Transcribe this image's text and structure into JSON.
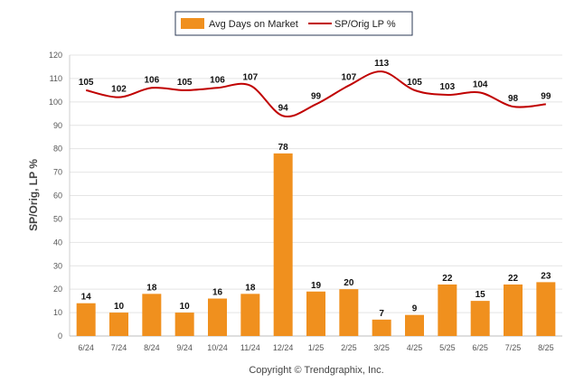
{
  "chart_data": {
    "type": "bar",
    "categories": [
      "6/24",
      "7/24",
      "8/24",
      "9/24",
      "10/24",
      "11/24",
      "12/24",
      "1/25",
      "2/25",
      "3/25",
      "4/25",
      "5/25",
      "6/25",
      "7/25",
      "8/25"
    ],
    "series": [
      {
        "name": "Avg Days on Market",
        "type": "bar",
        "values": [
          14,
          10,
          18,
          10,
          16,
          18,
          78,
          19,
          20,
          7,
          9,
          22,
          15,
          22,
          23
        ],
        "color": "#F0901E"
      },
      {
        "name": "SP/Orig LP %",
        "type": "line",
        "values": [
          105,
          102,
          106,
          105,
          106,
          107,
          94,
          99,
          107,
          113,
          105,
          103,
          104,
          98,
          99
        ],
        "color": "#C00000"
      }
    ],
    "ylabel": "SP/Orig, LP %",
    "ylim": [
      0,
      120
    ],
    "yticks": [
      0,
      10,
      20,
      30,
      40,
      50,
      60,
      70,
      80,
      90,
      100,
      110,
      120
    ],
    "grid": true,
    "legend_position": "top-center"
  },
  "footer": {
    "copyright": "Copyright © Trendgraphix, Inc."
  }
}
